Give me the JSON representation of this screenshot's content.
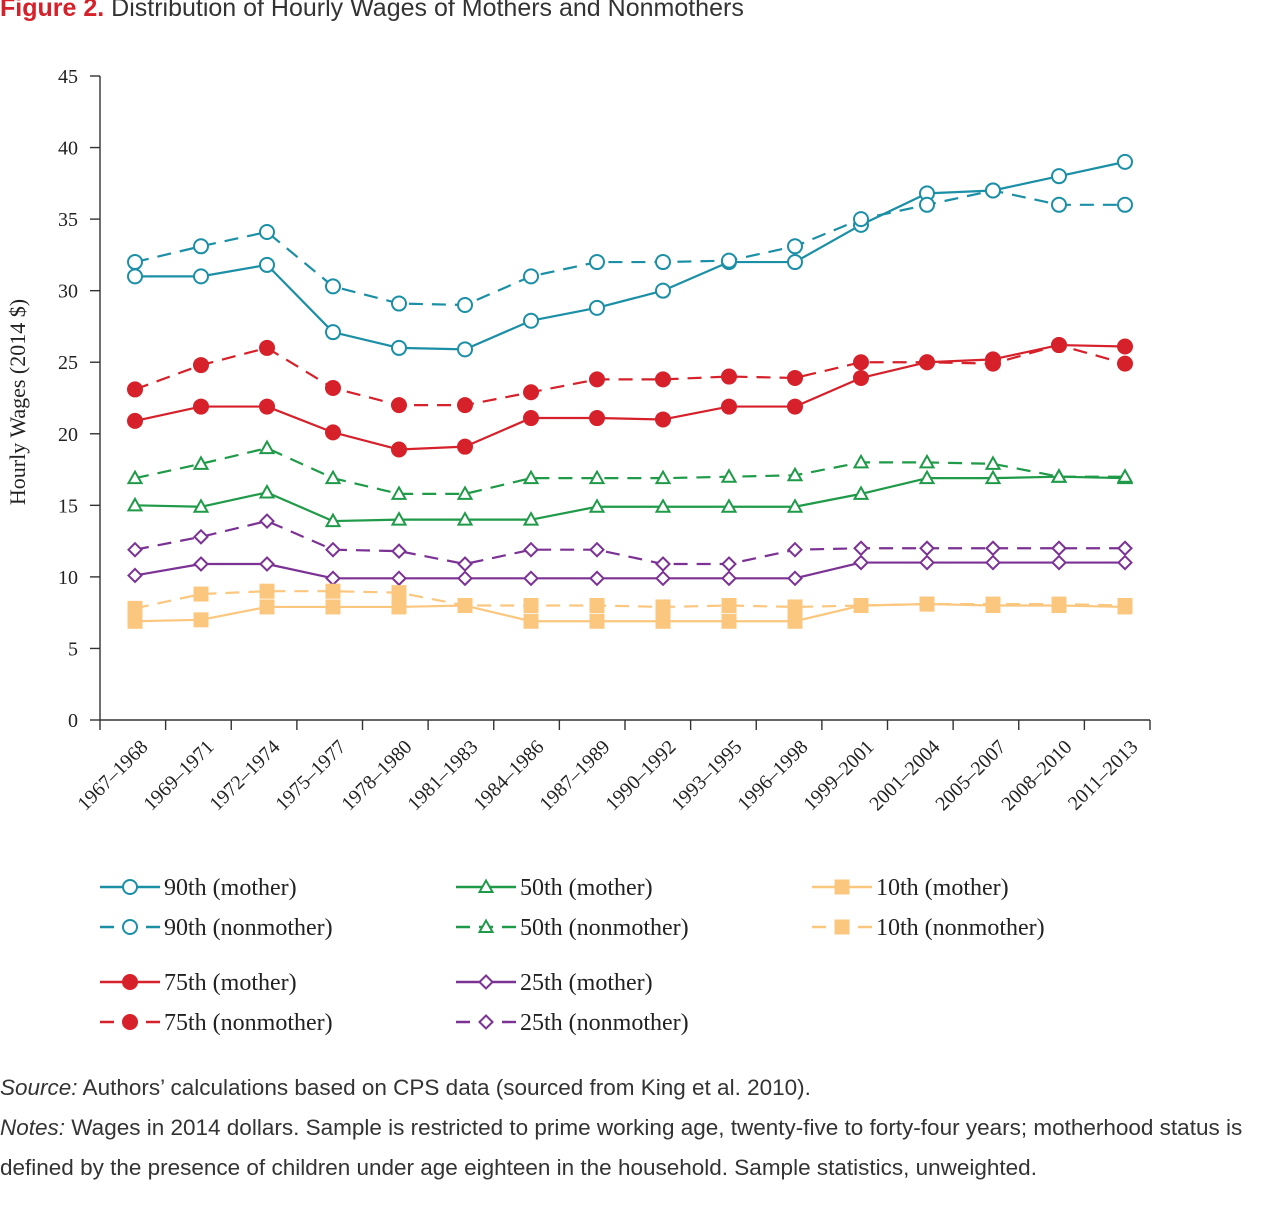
{
  "figure": {
    "label": "Figure 2.",
    "title": "Distribution of Hourly Wages of Mothers and Nonmothers"
  },
  "chart_data": {
    "type": "line",
    "title": "Distribution of Hourly Wages of Mothers and Nonmothers",
    "xlabel": "",
    "ylabel": "Hourly Wages (2014 $)",
    "ylim": [
      0,
      45
    ],
    "yticks": [
      0,
      5,
      10,
      15,
      20,
      25,
      30,
      35,
      40,
      45
    ],
    "grid": false,
    "legend_position": "bottom",
    "categories": [
      "1967–1968",
      "1969–1971",
      "1972–1974",
      "1975–1977",
      "1978–1980",
      "1981–1983",
      "1984–1986",
      "1987–1989",
      "1990–1992",
      "1993–1995",
      "1996–1998",
      "1999–2001",
      "2001–2004",
      "2005–2007",
      "2008–2010",
      "2011–2013"
    ],
    "series": [
      {
        "name": "90th (mother)",
        "color": "#1b8fa6",
        "dash": "solid",
        "marker": "circle-open",
        "values": [
          31,
          31,
          31.8,
          27.1,
          26,
          25.9,
          27.9,
          28.8,
          30,
          32,
          32,
          34.6,
          36.8,
          37,
          38,
          39
        ]
      },
      {
        "name": "90th (nonmother)",
        "color": "#1b8fa6",
        "dash": "dashed",
        "marker": "circle-open",
        "values": [
          32,
          33.1,
          34.1,
          30.3,
          29.1,
          29,
          31,
          32,
          32,
          32.1,
          33.1,
          35,
          36,
          37,
          36,
          36
        ]
      },
      {
        "name": "75th (mother)",
        "color": "#d6202a",
        "dash": "solid",
        "marker": "circle-filled",
        "values": [
          20.9,
          21.9,
          21.9,
          20.1,
          18.9,
          19.1,
          21.1,
          21.1,
          21,
          21.9,
          21.9,
          23.9,
          25,
          25.2,
          26.2,
          26.1
        ]
      },
      {
        "name": "75th (nonmother)",
        "color": "#d6202a",
        "dash": "dashed",
        "marker": "circle-filled",
        "values": [
          23.1,
          24.8,
          26,
          23.2,
          22,
          22,
          22.9,
          23.8,
          23.8,
          24,
          23.9,
          25,
          25,
          24.9,
          26.2,
          24.9
        ]
      },
      {
        "name": "50th (mother)",
        "color": "#1f9a48",
        "dash": "solid",
        "marker": "triangle-open",
        "values": [
          15,
          14.9,
          15.9,
          13.9,
          14,
          14,
          14,
          14.9,
          14.9,
          14.9,
          14.9,
          15.8,
          16.9,
          16.9,
          17,
          16.9
        ]
      },
      {
        "name": "50th (nonmother)",
        "color": "#1f9a48",
        "dash": "dashed",
        "marker": "triangle-open",
        "values": [
          16.9,
          17.9,
          19,
          16.9,
          15.8,
          15.8,
          16.9,
          16.9,
          16.9,
          17,
          17.1,
          18,
          18,
          17.9,
          17,
          17
        ]
      },
      {
        "name": "25th (mother)",
        "color": "#7b3294",
        "dash": "solid",
        "marker": "diamond-open",
        "values": [
          10.1,
          10.9,
          10.9,
          9.9,
          9.9,
          9.9,
          9.9,
          9.9,
          9.9,
          9.9,
          9.9,
          11,
          11,
          11,
          11,
          11
        ]
      },
      {
        "name": "25th (nonmother)",
        "color": "#7b3294",
        "dash": "dashed",
        "marker": "diamond-open",
        "values": [
          11.9,
          12.8,
          13.9,
          11.9,
          11.8,
          10.9,
          11.9,
          11.9,
          10.9,
          10.9,
          11.9,
          12,
          12,
          12,
          12,
          12
        ]
      },
      {
        "name": "10th (mother)",
        "color": "#fbc77f",
        "dash": "solid",
        "marker": "square-filled",
        "values": [
          6.9,
          7,
          7.9,
          7.9,
          7.9,
          8,
          6.9,
          6.9,
          6.9,
          6.9,
          6.9,
          8,
          8.1,
          8,
          8,
          7.9
        ]
      },
      {
        "name": "10th (nonmother)",
        "color": "#fbc77f",
        "dash": "dashed",
        "marker": "square-filled",
        "values": [
          7.8,
          8.8,
          9,
          9,
          8.9,
          8,
          8,
          8,
          7.9,
          8,
          7.9,
          8,
          8.1,
          8.1,
          8.1,
          8
        ]
      }
    ],
    "legend_order": [
      "90th (mother)",
      "50th (mother)",
      "10th (mother)",
      "90th (nonmother)",
      "50th (nonmother)",
      "10th (nonmother)",
      "75th (mother)",
      "25th (mother)",
      "75th (nonmother)",
      "25th (nonmother)"
    ]
  },
  "notes": {
    "source_label": "Source:",
    "source_text": " Authors’ calculations based on CPS data (sourced from King et al. 2010).",
    "notes_label": "Notes:",
    "notes_text": " Wages in 2014 dollars. Sample is restricted to prime working age, twenty-five to forty-four years; motherhood status is defined by the presence of children under age eighteen in the household. Sample statistics, unweighted."
  }
}
